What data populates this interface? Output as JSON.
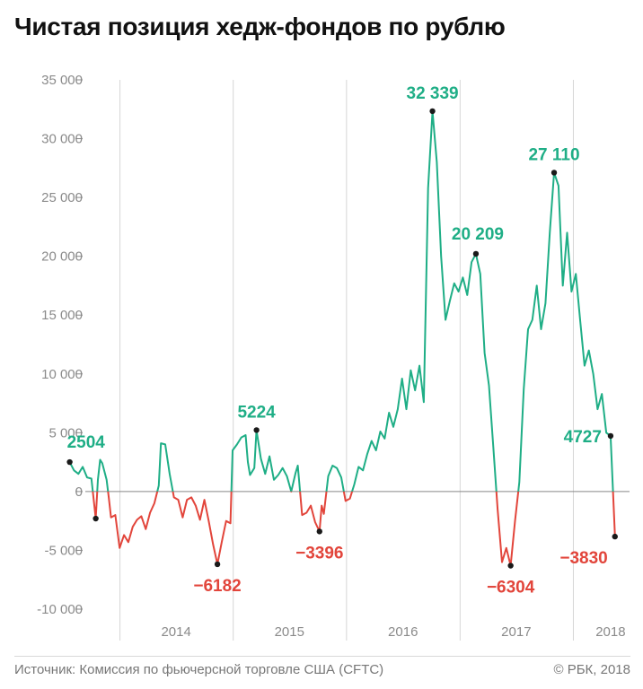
{
  "title": "Чистая позиция хедж-фондов по рублю",
  "source": "Источник: Комиссия по фьючерсной торговле США (CFTC)",
  "copyright": "© РБК, 2018",
  "colors": {
    "positive": "#1fae86",
    "negative": "#e2453b",
    "zero_line": "#888888",
    "grid": "#d6d6d6",
    "tick_text": "#8a8a8a",
    "marker": "#1a1a1a"
  },
  "chart_data": {
    "type": "line",
    "title": "Чистая позиция хедж-фондов по рублю",
    "xlabel": "",
    "ylabel": "",
    "ylim": [
      -10000,
      35000
    ],
    "xlim": [
      "2013-07-01",
      "2018-07-01"
    ],
    "y_ticks": [
      {
        "value": 35000,
        "label": "35 000"
      },
      {
        "value": 30000,
        "label": "30 000"
      },
      {
        "value": 25000,
        "label": "25 000"
      },
      {
        "value": 20000,
        "label": "20 000"
      },
      {
        "value": 15000,
        "label": "15 000"
      },
      {
        "value": 10000,
        "label": "10 000"
      },
      {
        "value": 5000,
        "label": "5 000"
      },
      {
        "value": 0,
        "label": "0"
      },
      {
        "value": -5000,
        "label": "-5 000"
      },
      {
        "value": -10000,
        "label": "-10 000"
      }
    ],
    "year_dividers": [
      "2014-01-01",
      "2015-01-01",
      "2016-01-01",
      "2017-01-01",
      "2018-01-01"
    ],
    "year_labels": [
      {
        "date": "2014-07-01",
        "label": "2014"
      },
      {
        "date": "2015-07-01",
        "label": "2015"
      },
      {
        "date": "2016-07-01",
        "label": "2016"
      },
      {
        "date": "2017-07-01",
        "label": "2017"
      },
      {
        "date": "2018-05-01",
        "label": "2018"
      }
    ],
    "grid": "vertical-year-lines",
    "legend": "none",
    "series": [
      {
        "points": [
          [
            "2013-07-23",
            2504
          ],
          [
            "2013-08-06",
            1800
          ],
          [
            "2013-08-20",
            1500
          ],
          [
            "2013-09-03",
            2100
          ],
          [
            "2013-09-17",
            1200
          ],
          [
            "2013-10-01",
            1100
          ],
          [
            "2013-10-15",
            -2300
          ],
          [
            "2013-10-22",
            1000
          ],
          [
            "2013-10-29",
            2700
          ],
          [
            "2013-11-05",
            2400
          ],
          [
            "2013-11-19",
            1000
          ],
          [
            "2013-11-26",
            -500
          ],
          [
            "2013-12-03",
            -2200
          ],
          [
            "2013-12-17",
            -2000
          ],
          [
            "2013-12-31",
            -4800
          ],
          [
            "2014-01-14",
            -3700
          ],
          [
            "2014-01-28",
            -4300
          ],
          [
            "2014-02-11",
            -3000
          ],
          [
            "2014-02-25",
            -2400
          ],
          [
            "2014-03-11",
            -2100
          ],
          [
            "2014-03-25",
            -3200
          ],
          [
            "2014-04-08",
            -1800
          ],
          [
            "2014-04-22",
            -1000
          ],
          [
            "2014-05-06",
            500
          ],
          [
            "2014-05-13",
            4100
          ],
          [
            "2014-05-27",
            4000
          ],
          [
            "2014-06-10",
            1500
          ],
          [
            "2014-06-24",
            -500
          ],
          [
            "2014-07-08",
            -700
          ],
          [
            "2014-07-22",
            -2200
          ],
          [
            "2014-08-05",
            -700
          ],
          [
            "2014-08-19",
            -500
          ],
          [
            "2014-09-02",
            -1200
          ],
          [
            "2014-09-16",
            -2400
          ],
          [
            "2014-09-30",
            -700
          ],
          [
            "2014-10-14",
            -2500
          ],
          [
            "2014-10-28",
            -4500
          ],
          [
            "2014-11-11",
            -6182
          ],
          [
            "2014-11-25",
            -4300
          ],
          [
            "2014-12-09",
            -2500
          ],
          [
            "2014-12-23",
            -2700
          ],
          [
            "2014-12-30",
            3500
          ],
          [
            "2015-01-13",
            4000
          ],
          [
            "2015-01-27",
            4600
          ],
          [
            "2015-02-10",
            4800
          ],
          [
            "2015-02-17",
            2500
          ],
          [
            "2015-02-24",
            1400
          ],
          [
            "2015-03-10",
            2000
          ],
          [
            "2015-03-17",
            5224
          ],
          [
            "2015-03-31",
            2800
          ],
          [
            "2015-04-14",
            1500
          ],
          [
            "2015-04-28",
            3000
          ],
          [
            "2015-05-12",
            1000
          ],
          [
            "2015-05-26",
            1400
          ],
          [
            "2015-06-09",
            2000
          ],
          [
            "2015-06-23",
            1300
          ],
          [
            "2015-07-07",
            0
          ],
          [
            "2015-07-21",
            1600
          ],
          [
            "2015-07-28",
            2200
          ],
          [
            "2015-08-11",
            -2000
          ],
          [
            "2015-08-25",
            -1800
          ],
          [
            "2015-09-08",
            -1200
          ],
          [
            "2015-09-22",
            -2600
          ],
          [
            "2015-10-06",
            -3396
          ],
          [
            "2015-10-13",
            -1200
          ],
          [
            "2015-10-20",
            -1900
          ],
          [
            "2015-11-03",
            1300
          ],
          [
            "2015-11-17",
            2200
          ],
          [
            "2015-12-01",
            2000
          ],
          [
            "2015-12-15",
            1200
          ],
          [
            "2015-12-29",
            -800
          ],
          [
            "2016-01-12",
            -600
          ],
          [
            "2016-01-26",
            600
          ],
          [
            "2016-02-09",
            2100
          ],
          [
            "2016-02-23",
            1800
          ],
          [
            "2016-03-08",
            3200
          ],
          [
            "2016-03-22",
            4300
          ],
          [
            "2016-04-05",
            3500
          ],
          [
            "2016-04-19",
            5100
          ],
          [
            "2016-05-03",
            4500
          ],
          [
            "2016-05-17",
            6700
          ],
          [
            "2016-05-31",
            5500
          ],
          [
            "2016-06-14",
            7000
          ],
          [
            "2016-06-28",
            9600
          ],
          [
            "2016-07-12",
            7000
          ],
          [
            "2016-07-26",
            10300
          ],
          [
            "2016-08-09",
            8600
          ],
          [
            "2016-08-23",
            10700
          ],
          [
            "2016-09-06",
            7600
          ],
          [
            "2016-09-20",
            25800
          ],
          [
            "2016-10-04",
            32339
          ],
          [
            "2016-10-18",
            28000
          ],
          [
            "2016-11-01",
            20000
          ],
          [
            "2016-11-15",
            14600
          ],
          [
            "2016-11-29",
            16200
          ],
          [
            "2016-12-13",
            17700
          ],
          [
            "2016-12-27",
            17000
          ],
          [
            "2017-01-10",
            18200
          ],
          [
            "2017-01-24",
            16700
          ],
          [
            "2017-02-07",
            19500
          ],
          [
            "2017-02-21",
            20209
          ],
          [
            "2017-03-07",
            18500
          ],
          [
            "2017-03-21",
            11800
          ],
          [
            "2017-04-04",
            9000
          ],
          [
            "2017-04-18",
            3800
          ],
          [
            "2017-05-02",
            -1500
          ],
          [
            "2017-05-16",
            -6000
          ],
          [
            "2017-05-30",
            -4800
          ],
          [
            "2017-06-13",
            -6304
          ],
          [
            "2017-06-27",
            -2500
          ],
          [
            "2017-07-11",
            800
          ],
          [
            "2017-07-25",
            8700
          ],
          [
            "2017-08-08",
            13800
          ],
          [
            "2017-08-22",
            14600
          ],
          [
            "2017-09-05",
            17500
          ],
          [
            "2017-09-19",
            13800
          ],
          [
            "2017-10-03",
            16000
          ],
          [
            "2017-10-17",
            22000
          ],
          [
            "2017-10-31",
            27110
          ],
          [
            "2017-11-14",
            26000
          ],
          [
            "2017-11-28",
            17500
          ],
          [
            "2017-12-12",
            22000
          ],
          [
            "2017-12-26",
            17000
          ],
          [
            "2018-01-09",
            18500
          ],
          [
            "2018-01-23",
            14500
          ],
          [
            "2018-02-06",
            10700
          ],
          [
            "2018-02-20",
            12000
          ],
          [
            "2018-03-06",
            10000
          ],
          [
            "2018-03-20",
            7000
          ],
          [
            "2018-04-03",
            8300
          ],
          [
            "2018-04-17",
            5000
          ],
          [
            "2018-05-01",
            4727
          ],
          [
            "2018-05-15",
            -3830
          ]
        ]
      }
    ],
    "annotations": [
      {
        "date": "2013-07-23",
        "value": 2504,
        "label": "2504",
        "sign": "positive",
        "side": "above"
      },
      {
        "date": "2013-10-15",
        "value": -2300,
        "label": "",
        "sign": "negative",
        "side": "below"
      },
      {
        "date": "2014-11-11",
        "value": -6182,
        "label": "−6182",
        "sign": "negative",
        "side": "below"
      },
      {
        "date": "2015-03-17",
        "value": 5224,
        "label": "5224",
        "sign": "positive",
        "side": "above"
      },
      {
        "date": "2015-10-06",
        "value": -3396,
        "label": "−3396",
        "sign": "negative",
        "side": "below"
      },
      {
        "date": "2016-10-04",
        "value": 32339,
        "label": "32 339",
        "sign": "positive",
        "side": "above"
      },
      {
        "date": "2017-02-21",
        "value": 20209,
        "label": "20 209",
        "sign": "positive",
        "side": "above"
      },
      {
        "date": "2017-06-13",
        "value": -6304,
        "label": "−6304",
        "sign": "negative",
        "side": "below"
      },
      {
        "date": "2017-10-31",
        "value": 27110,
        "label": "27 110",
        "sign": "positive",
        "side": "above"
      },
      {
        "date": "2018-05-01",
        "value": 4727,
        "label": "4727",
        "sign": "positive",
        "side": "left"
      },
      {
        "date": "2018-05-15",
        "value": -3830,
        "label": "−3830",
        "sign": "negative",
        "side": "below-left"
      }
    ]
  }
}
